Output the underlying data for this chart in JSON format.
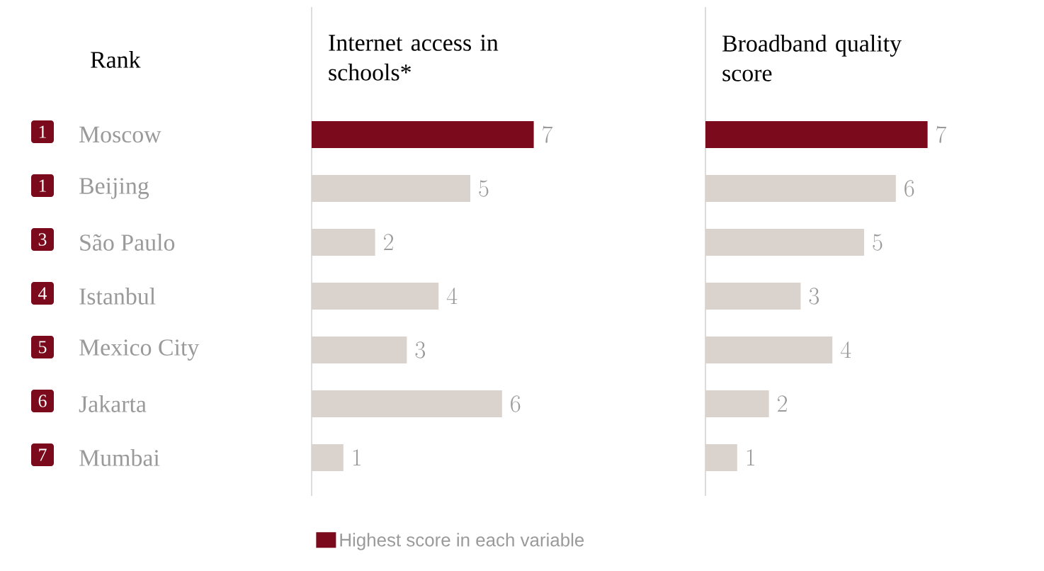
{
  "chart_data": [
    {
      "type": "other",
      "title": "Rank",
      "annotations": [
        "1",
        "1",
        "3",
        "4",
        "5",
        "6",
        "7"
      ]
    },
    {
      "type": "bar",
      "orientation": "horizontal",
      "title": "Internet access in schools*",
      "categories": [
        "Moscow",
        "Beijing",
        "São Paulo",
        "Istanbul",
        "Mexico City",
        "Jakarta",
        "Mumbai"
      ],
      "data_labels": true,
      "legend": "bottom",
      "tick_labels": "y",
      "series": [
        {
          "name": "Highest score in each variable",
          "color": "#7a0a1c",
          "values": [
            7,
            null,
            null,
            null,
            null,
            null,
            null
          ]
        },
        {
          "color": "#d9d2cd",
          "values": [
            null,
            5,
            2,
            4,
            3,
            6,
            1
          ]
        }
      ]
    },
    {
      "type": "bar",
      "orientation": "horizontal",
      "title": "Broadband quality score",
      "data_labels": true,
      "tick_labels": false,
      "series": [
        {
          "color": "#7a0a1c",
          "values": [
            7,
            null,
            null,
            null,
            null,
            null,
            null
          ]
        },
        {
          "color": "#d9d2cd",
          "values": [
            null,
            6,
            5,
            3,
            4,
            2,
            1
          ]
        }
      ]
    }
  ]
}
